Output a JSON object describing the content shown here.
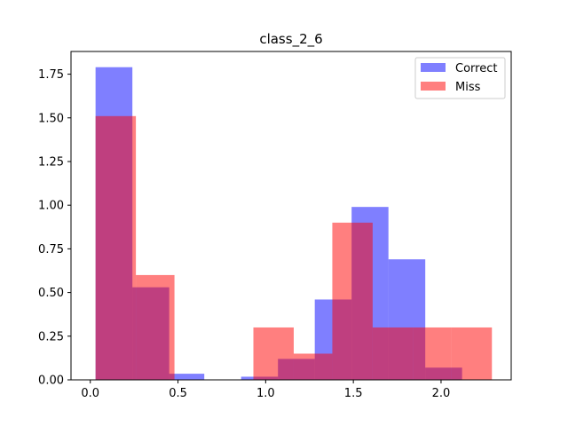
{
  "chart_data": {
    "type": "histogram",
    "title": "class_2_6",
    "xlabel": "",
    "ylabel": "",
    "xlim": [
      -0.11,
      2.4
    ],
    "ylim": [
      0,
      1.88
    ],
    "xticks": [
      0.0,
      0.5,
      1.0,
      1.5,
      2.0
    ],
    "xtick_labels": [
      "0.0",
      "0.5",
      "1.0",
      "1.5",
      "2.0"
    ],
    "yticks": [
      0.0,
      0.25,
      0.5,
      0.75,
      1.0,
      1.25,
      1.5,
      1.75
    ],
    "ytick_labels": [
      "0.00",
      "0.25",
      "0.50",
      "0.75",
      "1.00",
      "1.25",
      "1.50",
      "1.75"
    ],
    "grid": false,
    "legend_position": "top-right",
    "series": [
      {
        "name": "Correct",
        "color": "#0000ff",
        "alpha": 0.5,
        "bins": [
          {
            "x0": 0.03,
            "x1": 0.24,
            "value": 1.79
          },
          {
            "x0": 0.24,
            "x1": 0.45,
            "value": 0.53
          },
          {
            "x0": 0.45,
            "x1": 0.65,
            "value": 0.035
          },
          {
            "x0": 0.65,
            "x1": 0.86,
            "value": 0.0
          },
          {
            "x0": 0.86,
            "x1": 1.07,
            "value": 0.018
          },
          {
            "x0": 1.07,
            "x1": 1.28,
            "value": 0.12
          },
          {
            "x0": 1.28,
            "x1": 1.49,
            "value": 0.46
          },
          {
            "x0": 1.49,
            "x1": 1.7,
            "value": 0.99
          },
          {
            "x0": 1.7,
            "x1": 1.91,
            "value": 0.69
          },
          {
            "x0": 1.91,
            "x1": 2.12,
            "value": 0.07
          }
        ]
      },
      {
        "name": "Miss",
        "color": "#ff0000",
        "alpha": 0.5,
        "bins": [
          {
            "x0": 0.03,
            "x1": 0.26,
            "value": 1.51
          },
          {
            "x0": 0.26,
            "x1": 0.48,
            "value": 0.6
          },
          {
            "x0": 0.48,
            "x1": 0.71,
            "value": 0.0
          },
          {
            "x0": 0.71,
            "x1": 0.93,
            "value": 0.0
          },
          {
            "x0": 0.93,
            "x1": 1.16,
            "value": 0.3
          },
          {
            "x0": 1.16,
            "x1": 1.38,
            "value": 0.15
          },
          {
            "x0": 1.38,
            "x1": 1.61,
            "value": 0.9
          },
          {
            "x0": 1.61,
            "x1": 1.84,
            "value": 0.3
          },
          {
            "x0": 1.84,
            "x1": 2.06,
            "value": 0.3
          },
          {
            "x0": 2.06,
            "x1": 2.29,
            "value": 0.3
          }
        ]
      }
    ]
  }
}
